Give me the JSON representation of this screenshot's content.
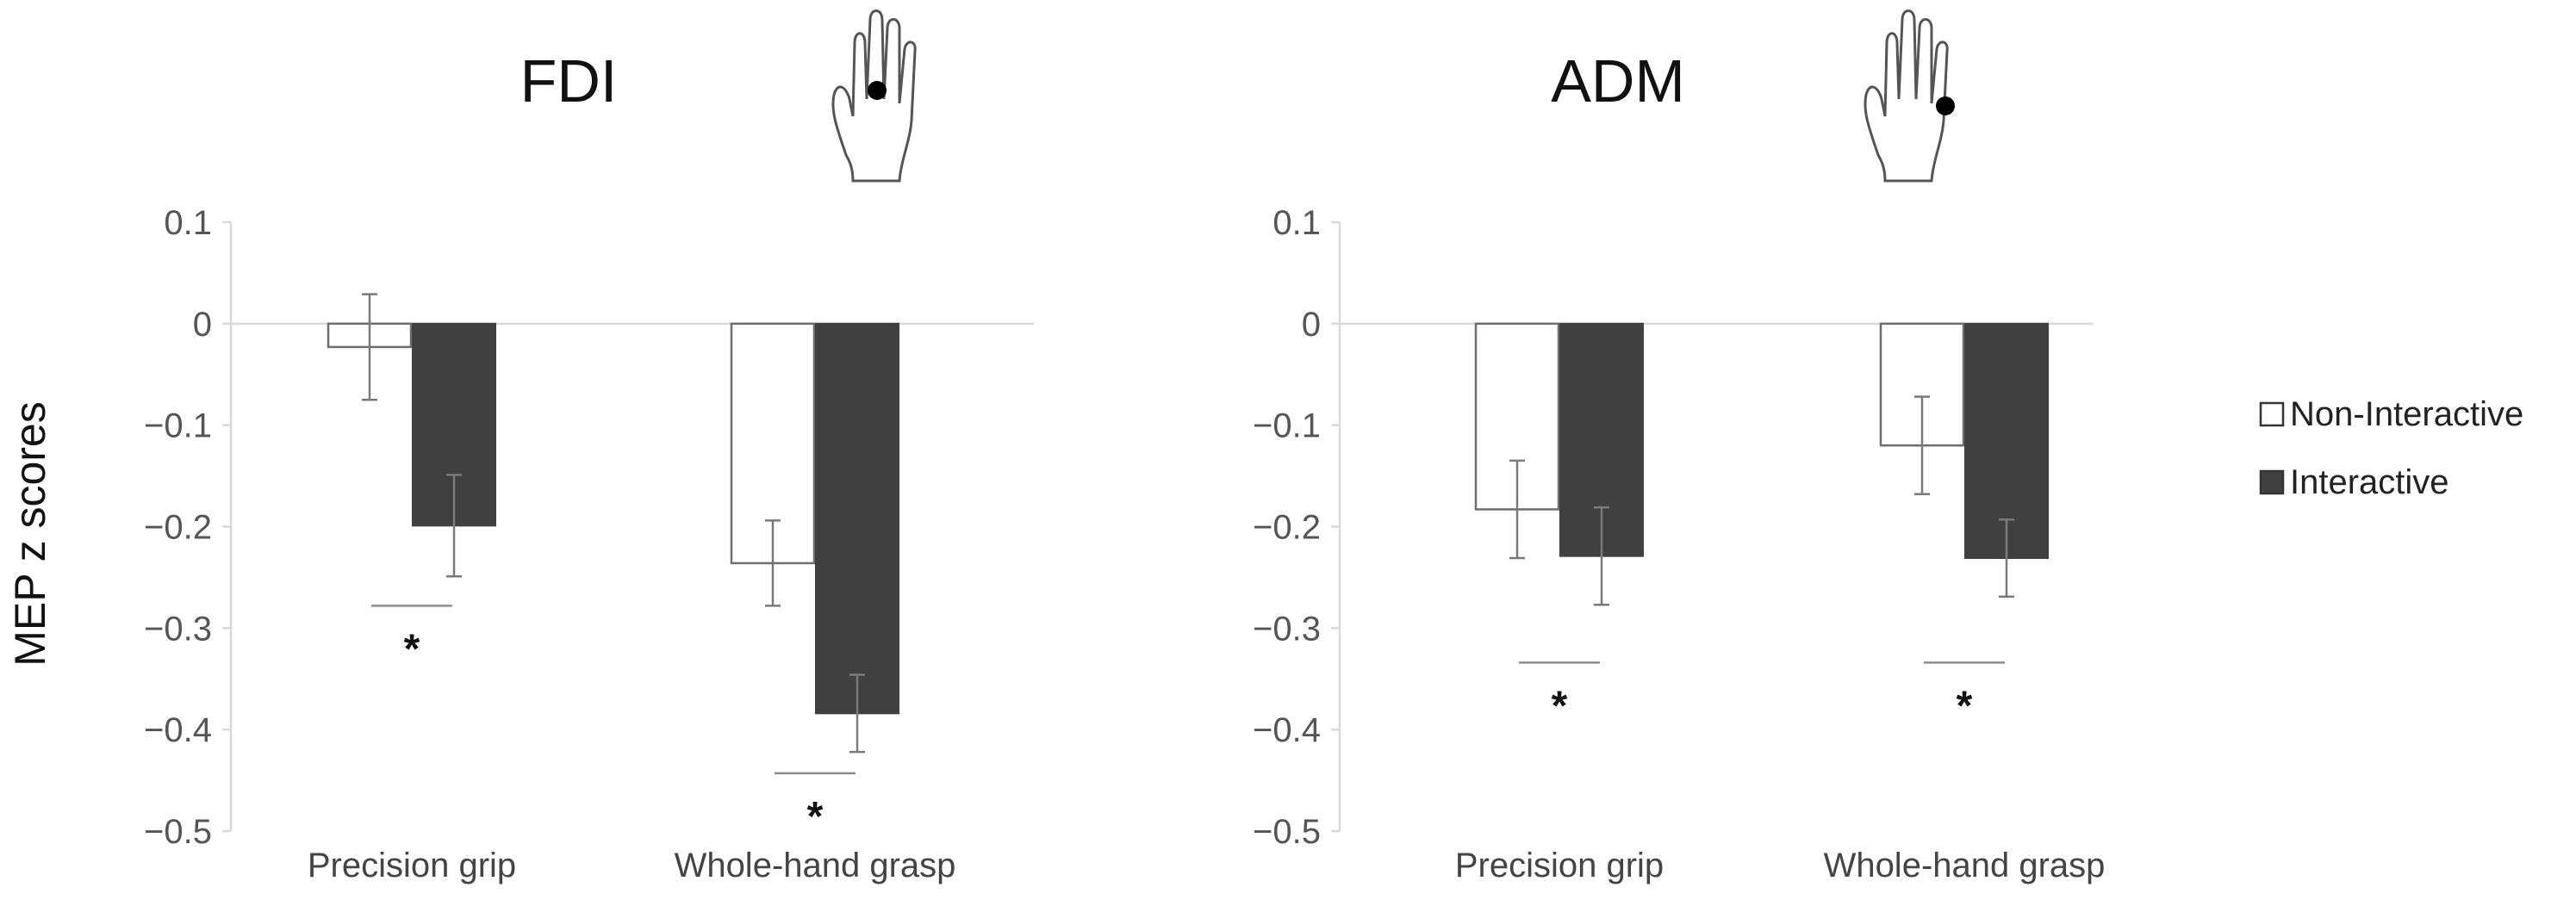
{
  "figure": {
    "ylabel": "MEP z scores",
    "legend": {
      "position": "right",
      "entries": [
        {
          "name": "Non-Interactive",
          "color": "#ffffff"
        },
        {
          "name": "Interactive",
          "color": "#404040"
        }
      ]
    }
  },
  "chart_data": [
    {
      "type": "bar",
      "title": "FDI",
      "icon": "hand-fdi-electrode-icon",
      "categories": [
        "Precision grip",
        "Whole-hand grasp"
      ],
      "series": [
        {
          "name": "Non-Interactive",
          "values": [
            -0.023,
            -0.236
          ],
          "errors": [
            0.052,
            0.042
          ]
        },
        {
          "name": "Interactive",
          "values": [
            -0.199,
            -0.384
          ],
          "errors": [
            0.05,
            0.038
          ]
        }
      ],
      "ylim": [
        -0.5,
        0.1
      ],
      "yticks": [
        0.1,
        0,
        -0.1,
        -0.2,
        -0.3,
        -0.4,
        -0.5
      ],
      "ytick_labels": [
        "0.1",
        "0",
        "−0.1",
        "−0.2",
        "−0.3",
        "−0.4",
        "−0.5"
      ],
      "significance": [
        {
          "category": "Precision grip",
          "label": "*",
          "bar_y": -0.278
        },
        {
          "category": "Whole-hand grasp",
          "label": "*",
          "bar_y": -0.443
        }
      ]
    },
    {
      "type": "bar",
      "title": "ADM",
      "icon": "hand-adm-electrode-icon",
      "categories": [
        "Precision grip",
        "Whole-hand grasp"
      ],
      "series": [
        {
          "name": "Non-Interactive",
          "values": [
            -0.183,
            -0.12
          ],
          "errors": [
            0.048,
            0.048
          ]
        },
        {
          "name": "Interactive",
          "values": [
            -0.229,
            -0.231
          ],
          "errors": [
            0.048,
            0.038
          ]
        }
      ],
      "ylim": [
        -0.5,
        0.1
      ],
      "yticks": [
        0.1,
        0,
        -0.1,
        -0.2,
        -0.3,
        -0.4,
        -0.5
      ],
      "ytick_labels": [
        "0.1",
        "0",
        "−0.1",
        "−0.2",
        "−0.3",
        "−0.4",
        "−0.5"
      ],
      "significance": [
        {
          "category": "Precision grip",
          "label": "*",
          "bar_y": -0.334
        },
        {
          "category": "Whole-hand grasp",
          "label": "*",
          "bar_y": -0.334
        }
      ]
    }
  ]
}
